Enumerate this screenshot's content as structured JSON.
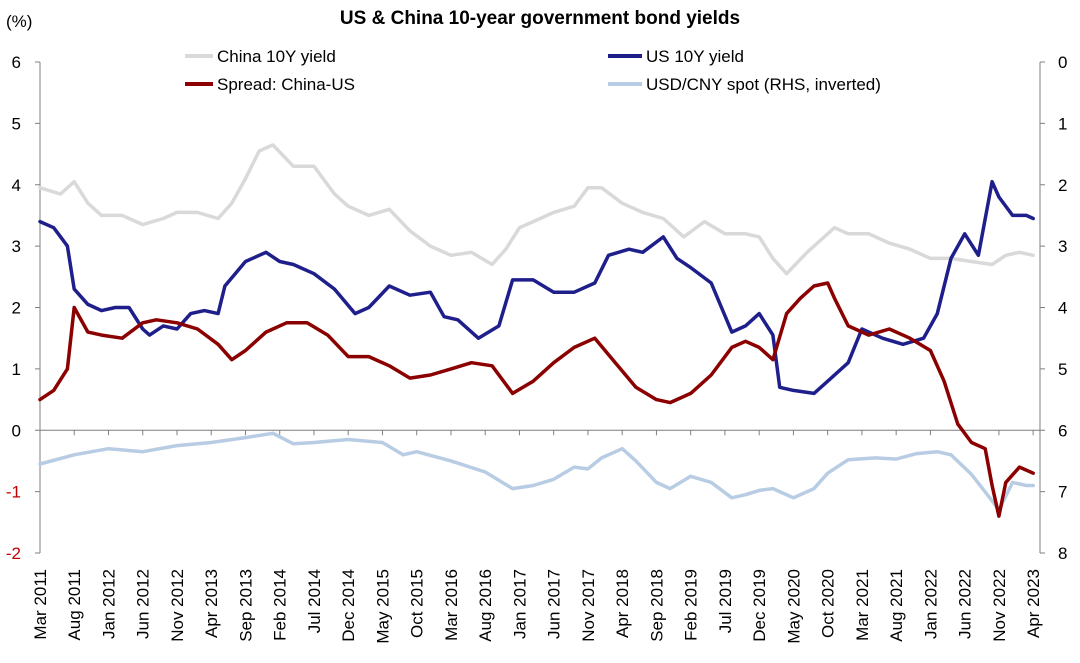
{
  "chart_data": {
    "type": "line",
    "title": "US & China 10-year government bond yields",
    "ylabel": "(%)",
    "ylim": [
      -2,
      6
    ],
    "y_ticks": [
      "6",
      "5",
      "4",
      "3",
      "2",
      "1",
      "0",
      "-1",
      "-2"
    ],
    "y2lim": [
      0,
      8
    ],
    "y2_inverted": true,
    "y2_ticks": [
      "0",
      "1",
      "2",
      "3",
      "4",
      "5",
      "6",
      "7",
      "8"
    ],
    "x_ticks": [
      "Mar 2011",
      "Aug 2011",
      "Jan 2012",
      "Jun 2012",
      "Nov 2012",
      "Apr 2013",
      "Sep 2013",
      "Feb 2014",
      "Jul 2014",
      "Dec 2014",
      "May 2015",
      "Oct 2015",
      "Mar 2016",
      "Aug 2016",
      "Jan 2017",
      "Jun 2017",
      "Nov 2017",
      "Apr 2018",
      "Sep 2018",
      "Feb 2019",
      "Jul 2019",
      "Dec 2019",
      "May 2020",
      "Oct 2020",
      "Mar 2021",
      "Aug 2021",
      "Jan 2022",
      "Jun 2022",
      "Nov 2022",
      "Apr 2023"
    ],
    "grid": false,
    "series": [
      {
        "name": "China 10Y yield",
        "axis": "left",
        "color": "#d9d9d9",
        "x": [
          "2011-03",
          "2011-06",
          "2011-08",
          "2011-10",
          "2011-12",
          "2012-03",
          "2012-06",
          "2012-09",
          "2012-11",
          "2013-02",
          "2013-05",
          "2013-07",
          "2013-09",
          "2013-11",
          "2014-01",
          "2014-04",
          "2014-07",
          "2014-10",
          "2014-12",
          "2015-03",
          "2015-06",
          "2015-09",
          "2015-12",
          "2016-03",
          "2016-06",
          "2016-09",
          "2016-11",
          "2017-01",
          "2017-03",
          "2017-06",
          "2017-09",
          "2017-11",
          "2018-01",
          "2018-04",
          "2018-07",
          "2018-10",
          "2019-01",
          "2019-04",
          "2019-07",
          "2019-10",
          "2019-12",
          "2020-02",
          "2020-04",
          "2020-07",
          "2020-09",
          "2020-11",
          "2021-01",
          "2021-04",
          "2021-07",
          "2021-10",
          "2022-01",
          "2022-04",
          "2022-07",
          "2022-10",
          "2022-12",
          "2023-02",
          "2023-04"
        ],
        "values": [
          3.95,
          3.85,
          4.05,
          3.7,
          3.5,
          3.5,
          3.35,
          3.45,
          3.55,
          3.55,
          3.45,
          3.7,
          4.1,
          4.55,
          4.65,
          4.3,
          4.3,
          3.85,
          3.65,
          3.5,
          3.6,
          3.25,
          3.0,
          2.85,
          2.9,
          2.7,
          2.95,
          3.3,
          3.4,
          3.55,
          3.65,
          3.95,
          3.95,
          3.7,
          3.55,
          3.45,
          3.15,
          3.4,
          3.2,
          3.2,
          3.15,
          2.8,
          2.55,
          2.9,
          3.1,
          3.3,
          3.2,
          3.2,
          3.05,
          2.95,
          2.8,
          2.8,
          2.75,
          2.7,
          2.85,
          2.9,
          2.85
        ]
      },
      {
        "name": "US 10Y yield",
        "axis": "left",
        "color": "#1f1f8c",
        "x": [
          "2011-03",
          "2011-05",
          "2011-07",
          "2011-08",
          "2011-10",
          "2011-12",
          "2012-02",
          "2012-04",
          "2012-06",
          "2012-07",
          "2012-09",
          "2012-11",
          "2013-01",
          "2013-03",
          "2013-05",
          "2013-06",
          "2013-09",
          "2013-12",
          "2014-02",
          "2014-04",
          "2014-07",
          "2014-10",
          "2015-01",
          "2015-03",
          "2015-06",
          "2015-09",
          "2015-12",
          "2016-02",
          "2016-04",
          "2016-07",
          "2016-10",
          "2016-12",
          "2017-03",
          "2017-06",
          "2017-09",
          "2017-12",
          "2018-02",
          "2018-05",
          "2018-07",
          "2018-10",
          "2018-12",
          "2019-02",
          "2019-05",
          "2019-08",
          "2019-10",
          "2019-12",
          "2020-02",
          "2020-03",
          "2020-05",
          "2020-08",
          "2020-10",
          "2021-01",
          "2021-03",
          "2021-06",
          "2021-09",
          "2021-12",
          "2022-02",
          "2022-04",
          "2022-06",
          "2022-08",
          "2022-10",
          "2022-11",
          "2023-01",
          "2023-03",
          "2023-04"
        ],
        "values": [
          3.4,
          3.3,
          3.0,
          2.3,
          2.05,
          1.95,
          2.0,
          2.0,
          1.65,
          1.55,
          1.7,
          1.65,
          1.9,
          1.95,
          1.9,
          2.35,
          2.75,
          2.9,
          2.75,
          2.7,
          2.55,
          2.3,
          1.9,
          2.0,
          2.35,
          2.2,
          2.25,
          1.85,
          1.8,
          1.5,
          1.7,
          2.45,
          2.45,
          2.25,
          2.25,
          2.4,
          2.85,
          2.95,
          2.9,
          3.15,
          2.8,
          2.65,
          2.4,
          1.6,
          1.7,
          1.9,
          1.55,
          0.7,
          0.65,
          0.6,
          0.8,
          1.1,
          1.65,
          1.5,
          1.4,
          1.5,
          1.9,
          2.8,
          3.2,
          2.85,
          4.05,
          3.8,
          3.5,
          3.5,
          3.45
        ]
      },
      {
        "name": "Spread: China-US",
        "axis": "left",
        "color": "#8b0000",
        "x": [
          "2011-03",
          "2011-05",
          "2011-07",
          "2011-08",
          "2011-10",
          "2011-12",
          "2012-03",
          "2012-06",
          "2012-08",
          "2012-11",
          "2013-02",
          "2013-05",
          "2013-07",
          "2013-09",
          "2013-12",
          "2014-03",
          "2014-06",
          "2014-09",
          "2014-12",
          "2015-03",
          "2015-06",
          "2015-09",
          "2015-12",
          "2016-03",
          "2016-06",
          "2016-09",
          "2016-12",
          "2017-03",
          "2017-06",
          "2017-09",
          "2017-12",
          "2018-03",
          "2018-06",
          "2018-09",
          "2018-11",
          "2019-02",
          "2019-05",
          "2019-08",
          "2019-10",
          "2019-12",
          "2020-02",
          "2020-04",
          "2020-06",
          "2020-08",
          "2020-10",
          "2020-11",
          "2021-01",
          "2021-04",
          "2021-07",
          "2021-10",
          "2022-01",
          "2022-03",
          "2022-05",
          "2022-07",
          "2022-09",
          "2022-10",
          "2022-11",
          "2022-12",
          "2023-02",
          "2023-04"
        ],
        "values": [
          0.5,
          0.65,
          1.0,
          2.0,
          1.6,
          1.55,
          1.5,
          1.75,
          1.8,
          1.75,
          1.65,
          1.4,
          1.15,
          1.3,
          1.6,
          1.75,
          1.75,
          1.55,
          1.2,
          1.2,
          1.05,
          0.85,
          0.9,
          1.0,
          1.1,
          1.05,
          0.6,
          0.8,
          1.1,
          1.35,
          1.5,
          1.1,
          0.7,
          0.5,
          0.45,
          0.6,
          0.9,
          1.35,
          1.45,
          1.35,
          1.15,
          1.9,
          2.15,
          2.35,
          2.4,
          2.15,
          1.7,
          1.55,
          1.65,
          1.5,
          1.3,
          0.8,
          0.1,
          -0.2,
          -0.3,
          -0.9,
          -1.4,
          -0.85,
          -0.6,
          -0.7
        ]
      },
      {
        "name": "USD/CNY spot (RHS, inverted)",
        "axis": "right",
        "color": "#b8cce4",
        "x": [
          "2011-03",
          "2011-08",
          "2012-01",
          "2012-06",
          "2012-11",
          "2013-04",
          "2013-09",
          "2014-01",
          "2014-04",
          "2014-07",
          "2014-12",
          "2015-05",
          "2015-08",
          "2015-10",
          "2016-03",
          "2016-08",
          "2016-12",
          "2017-03",
          "2017-06",
          "2017-09",
          "2017-11",
          "2018-01",
          "2018-04",
          "2018-06",
          "2018-09",
          "2018-11",
          "2019-02",
          "2019-05",
          "2019-08",
          "2019-10",
          "2019-12",
          "2020-02",
          "2020-05",
          "2020-08",
          "2020-10",
          "2021-01",
          "2021-05",
          "2021-08",
          "2021-11",
          "2022-02",
          "2022-04",
          "2022-07",
          "2022-10",
          "2022-11",
          "2023-01",
          "2023-03",
          "2023-04"
        ],
        "values": [
          6.55,
          6.4,
          6.3,
          6.35,
          6.25,
          6.2,
          6.12,
          6.05,
          6.22,
          6.2,
          6.15,
          6.2,
          6.4,
          6.35,
          6.5,
          6.68,
          6.95,
          6.9,
          6.8,
          6.6,
          6.63,
          6.45,
          6.3,
          6.5,
          6.85,
          6.95,
          6.75,
          6.85,
          7.1,
          7.05,
          6.98,
          6.95,
          7.1,
          6.95,
          6.7,
          6.48,
          6.45,
          6.47,
          6.38,
          6.35,
          6.4,
          6.72,
          7.15,
          7.3,
          6.85,
          6.9,
          6.9
        ]
      }
    ],
    "legend": {
      "placement": "top",
      "entries": [
        "China 10Y yield",
        "US 10Y yield",
        "Spread: China-US",
        "USD/CNY spot (RHS, inverted)"
      ]
    }
  }
}
